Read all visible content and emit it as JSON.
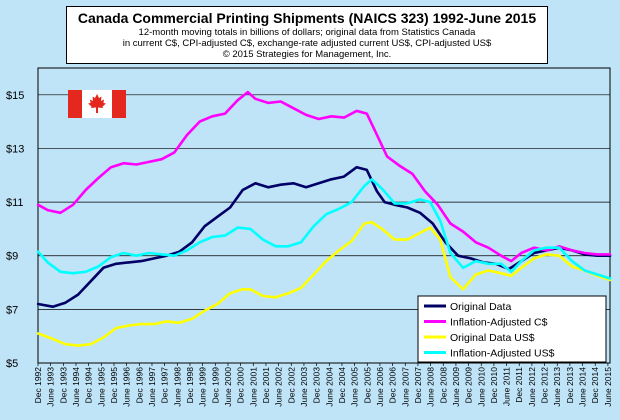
{
  "chart_data": {
    "type": "line",
    "title": "Canada Commercial Printing Shipments (NAICS 323) 1992-June 2015",
    "subtitle_lines": [
      "12-month moving totals in billions of dollars; original data from Statistics Canada",
      "in current C$, CPI-adjusted C$, exchange-rate adjusted current US$, CPI-adjusted US$",
      "© 2015 Strategies for Management, Inc."
    ],
    "xlabel": "",
    "ylabel": "",
    "xlim": [
      1992.917,
      2015.5
    ],
    "ylim": [
      5,
      16
    ],
    "y_ticks": [
      5,
      7,
      9,
      11,
      13,
      15
    ],
    "y_tick_labels": [
      "$5",
      "$7",
      "$9",
      "$11",
      "$13",
      "$15"
    ],
    "x_tick_labels": [
      "Dec 1992",
      "June 1993",
      "Dec 1993",
      "June 1994",
      "Dec 1994",
      "June 1995",
      "Dec 1995",
      "June 1996",
      "Dec 1996",
      "June 1997",
      "Dec 1997",
      "June 1998",
      "Dec 1998",
      "June 1999",
      "Dec 1999",
      "June 2000",
      "Dec 2000",
      "June 2001",
      "Dec 2001",
      "June 2002",
      "Dec 2002",
      "June 2003",
      "Dec 2003",
      "June 2004",
      "Dec 2004",
      "June 2005",
      "Dec 2005",
      "June 2006",
      "Dec 2006",
      "June 2007",
      "Dec 2007",
      "June 2008",
      "Dec 2008",
      "June 2009",
      "Dec 2009",
      "June 2010",
      "Dec 2010",
      "June 2011",
      "Dec 2011",
      "June 2012",
      "Dec 2012",
      "June 2013",
      "Dec 2013",
      "June 2014",
      "Dec 2014",
      "June 2015"
    ],
    "grid": "horizontal",
    "legend_position": "bottom-right",
    "series": [
      {
        "name": "Original Data",
        "color": "#000066",
        "points": [
          [
            1992.92,
            7.2
          ],
          [
            1993.5,
            7.1
          ],
          [
            1994,
            7.25
          ],
          [
            1994.5,
            7.55
          ],
          [
            1995,
            8.05
          ],
          [
            1995.5,
            8.55
          ],
          [
            1996,
            8.7
          ],
          [
            1996.5,
            8.75
          ],
          [
            1997,
            8.8
          ],
          [
            1997.5,
            8.9
          ],
          [
            1998,
            9.0
          ],
          [
            1998.5,
            9.15
          ],
          [
            1999,
            9.5
          ],
          [
            1999.5,
            10.1
          ],
          [
            2000,
            10.45
          ],
          [
            2000.5,
            10.8
          ],
          [
            2001,
            11.45
          ],
          [
            2001.5,
            11.7
          ],
          [
            2002,
            11.55
          ],
          [
            2002.5,
            11.65
          ],
          [
            2003,
            11.7
          ],
          [
            2003.5,
            11.55
          ],
          [
            2004,
            11.7
          ],
          [
            2004.5,
            11.85
          ],
          [
            2005,
            11.95
          ],
          [
            2005.5,
            12.3
          ],
          [
            2005.9,
            12.2
          ],
          [
            2006.3,
            11.4
          ],
          [
            2006.6,
            11.0
          ],
          [
            2007,
            10.9
          ],
          [
            2007.5,
            10.8
          ],
          [
            2008,
            10.6
          ],
          [
            2008.5,
            10.2
          ],
          [
            2009,
            9.5
          ],
          [
            2009.5,
            9.0
          ],
          [
            2010,
            8.9
          ],
          [
            2010.5,
            8.75
          ],
          [
            2011,
            8.7
          ],
          [
            2011.5,
            8.5
          ],
          [
            2012,
            8.8
          ],
          [
            2012.5,
            9.1
          ],
          [
            2013,
            9.2
          ],
          [
            2013.5,
            9.3
          ],
          [
            2014,
            9.2
          ],
          [
            2014.5,
            9.05
          ],
          [
            2015,
            9.0
          ],
          [
            2015.5,
            9.0
          ]
        ]
      },
      {
        "name": "Inflation-Adjusted C$",
        "color": "#ff00ff",
        "points": [
          [
            1992.92,
            10.9
          ],
          [
            1993.3,
            10.7
          ],
          [
            1993.8,
            10.6
          ],
          [
            1994.3,
            10.9
          ],
          [
            1994.8,
            11.45
          ],
          [
            1995.3,
            11.9
          ],
          [
            1995.8,
            12.3
          ],
          [
            1996.3,
            12.45
          ],
          [
            1996.8,
            12.4
          ],
          [
            1997.3,
            12.5
          ],
          [
            1997.8,
            12.6
          ],
          [
            1998.3,
            12.85
          ],
          [
            1998.8,
            13.5
          ],
          [
            1999.3,
            14.0
          ],
          [
            1999.8,
            14.2
          ],
          [
            2000.3,
            14.3
          ],
          [
            2000.8,
            14.8
          ],
          [
            2001.2,
            15.1
          ],
          [
            2001.5,
            14.85
          ],
          [
            2002,
            14.7
          ],
          [
            2002.5,
            14.75
          ],
          [
            2003,
            14.5
          ],
          [
            2003.5,
            14.25
          ],
          [
            2004,
            14.1
          ],
          [
            2004.5,
            14.2
          ],
          [
            2005,
            14.15
          ],
          [
            2005.5,
            14.4
          ],
          [
            2005.9,
            14.3
          ],
          [
            2006.3,
            13.5
          ],
          [
            2006.7,
            12.7
          ],
          [
            2007.2,
            12.35
          ],
          [
            2007.7,
            12.05
          ],
          [
            2008.2,
            11.4
          ],
          [
            2008.7,
            10.9
          ],
          [
            2009.2,
            10.2
          ],
          [
            2009.7,
            9.9
          ],
          [
            2010.2,
            9.5
          ],
          [
            2010.7,
            9.3
          ],
          [
            2011.2,
            9.0
          ],
          [
            2011.6,
            8.8
          ],
          [
            2012,
            9.1
          ],
          [
            2012.5,
            9.3
          ],
          [
            2013,
            9.2
          ],
          [
            2013.5,
            9.35
          ],
          [
            2014,
            9.2
          ],
          [
            2014.5,
            9.1
          ],
          [
            2015,
            9.05
          ],
          [
            2015.5,
            9.05
          ]
        ]
      },
      {
        "name": "Original Data US$",
        "color": "#ffff00",
        "points": [
          [
            1992.92,
            6.1
          ],
          [
            1993.5,
            5.9
          ],
          [
            1994,
            5.7
          ],
          [
            1994.5,
            5.65
          ],
          [
            1995,
            5.7
          ],
          [
            1995.5,
            5.95
          ],
          [
            1996,
            6.3
          ],
          [
            1996.5,
            6.4
          ],
          [
            1997,
            6.45
          ],
          [
            1997.5,
            6.45
          ],
          [
            1998,
            6.55
          ],
          [
            1998.5,
            6.5
          ],
          [
            1999,
            6.65
          ],
          [
            1999.5,
            6.95
          ],
          [
            2000,
            7.2
          ],
          [
            2000.5,
            7.6
          ],
          [
            2001,
            7.75
          ],
          [
            2001.3,
            7.75
          ],
          [
            2001.8,
            7.5
          ],
          [
            2002.3,
            7.45
          ],
          [
            2002.8,
            7.6
          ],
          [
            2003.3,
            7.8
          ],
          [
            2003.8,
            8.3
          ],
          [
            2004.3,
            8.8
          ],
          [
            2004.8,
            9.2
          ],
          [
            2005.3,
            9.55
          ],
          [
            2005.8,
            10.2
          ],
          [
            2006.1,
            10.25
          ],
          [
            2006.5,
            10.0
          ],
          [
            2007,
            9.6
          ],
          [
            2007.5,
            9.6
          ],
          [
            2008,
            9.85
          ],
          [
            2008.4,
            10.05
          ],
          [
            2008.8,
            9.6
          ],
          [
            2009.2,
            8.2
          ],
          [
            2009.7,
            7.75
          ],
          [
            2010.2,
            8.3
          ],
          [
            2010.7,
            8.45
          ],
          [
            2011.2,
            8.35
          ],
          [
            2011.6,
            8.25
          ],
          [
            2012,
            8.55
          ],
          [
            2012.5,
            8.9
          ],
          [
            2013,
            9.05
          ],
          [
            2013.5,
            9.0
          ],
          [
            2014,
            8.6
          ],
          [
            2014.5,
            8.45
          ],
          [
            2015,
            8.25
          ],
          [
            2015.5,
            8.1
          ]
        ]
      },
      {
        "name": "Inflation-Adjusted US$",
        "color": "#00ffff",
        "points": [
          [
            1992.92,
            9.15
          ],
          [
            1993.3,
            8.75
          ],
          [
            1993.8,
            8.4
          ],
          [
            1994.3,
            8.35
          ],
          [
            1994.8,
            8.4
          ],
          [
            1995.3,
            8.6
          ],
          [
            1995.8,
            8.95
          ],
          [
            1996.3,
            9.1
          ],
          [
            1996.8,
            9.0
          ],
          [
            1997.3,
            9.1
          ],
          [
            1997.8,
            9.05
          ],
          [
            1998.3,
            9.0
          ],
          [
            1998.8,
            9.2
          ],
          [
            1999.3,
            9.5
          ],
          [
            1999.8,
            9.7
          ],
          [
            2000.3,
            9.75
          ],
          [
            2000.8,
            10.05
          ],
          [
            2001.3,
            10.0
          ],
          [
            2001.8,
            9.6
          ],
          [
            2002.3,
            9.35
          ],
          [
            2002.8,
            9.35
          ],
          [
            2003.3,
            9.5
          ],
          [
            2003.8,
            10.1
          ],
          [
            2004.3,
            10.55
          ],
          [
            2004.8,
            10.75
          ],
          [
            2005.3,
            11.0
          ],
          [
            2005.8,
            11.6
          ],
          [
            2006.1,
            11.85
          ],
          [
            2006.5,
            11.5
          ],
          [
            2007,
            10.95
          ],
          [
            2007.5,
            10.95
          ],
          [
            2008,
            11.1
          ],
          [
            2008.4,
            11.0
          ],
          [
            2008.8,
            10.3
          ],
          [
            2009.2,
            9.1
          ],
          [
            2009.7,
            8.55
          ],
          [
            2010.2,
            8.8
          ],
          [
            2010.7,
            8.7
          ],
          [
            2011.2,
            8.7
          ],
          [
            2011.6,
            8.4
          ],
          [
            2012,
            8.8
          ],
          [
            2012.5,
            9.2
          ],
          [
            2013,
            9.3
          ],
          [
            2013.5,
            9.3
          ],
          [
            2014,
            8.8
          ],
          [
            2014.5,
            8.45
          ],
          [
            2015,
            8.3
          ],
          [
            2015.5,
            8.15
          ]
        ]
      }
    ]
  },
  "colors": {
    "page_background": "#bfe3f7",
    "plot_background": "#bfe3f7",
    "flag_red": "#e4271f",
    "gridline": "#000000"
  },
  "icons": {
    "flag": "canada-flag-icon"
  }
}
